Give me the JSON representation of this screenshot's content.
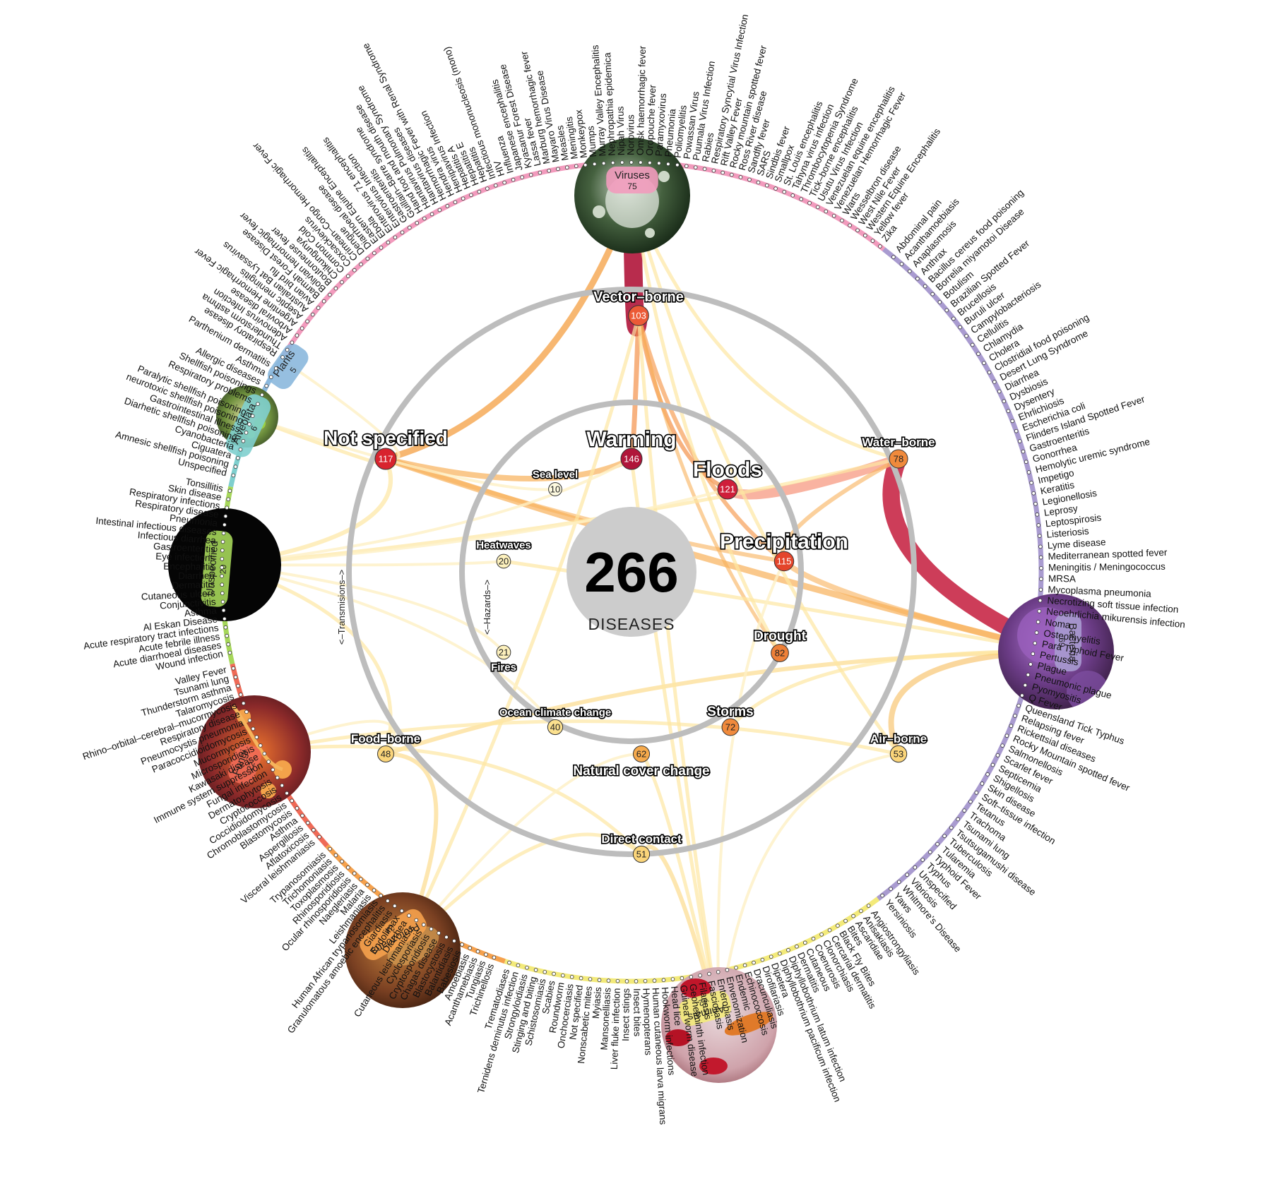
{
  "center": {
    "count": "266",
    "label": "DISEASES"
  },
  "rings": {
    "transmissions": "<–Transmisions–>",
    "hazards": "<–Hazards–>"
  },
  "hazards": [
    {
      "name": "Warming",
      "count": 146,
      "color": "#b0153a",
      "big": true
    },
    {
      "name": "Floods",
      "count": 121,
      "color": "#cf1e3a",
      "big": true
    },
    {
      "name": "Precipitation",
      "count": 115,
      "color": "#e4452b",
      "big": true
    },
    {
      "name": "Drought",
      "count": 82,
      "color": "#ee8038",
      "big": false
    },
    {
      "name": "Storms",
      "count": 72,
      "color": "#f08a3c",
      "big": false
    },
    {
      "name": "Natural cover change",
      "count": 62,
      "color": "#f6aa4c",
      "big": false
    },
    {
      "name": "Ocean climate change",
      "count": 40,
      "color": "#fbe08e",
      "big": false
    },
    {
      "name": "Fires",
      "count": 21,
      "color": "#fdf1bd",
      "big": false
    },
    {
      "name": "Heatwaves",
      "count": 20,
      "color": "#fdf1bd",
      "big": false
    },
    {
      "name": "Sea level",
      "count": 10,
      "color": "#fefae0",
      "big": false
    }
  ],
  "transmissions": [
    {
      "name": "Vector–borne",
      "count": 103,
      "color": "#ec5a36"
    },
    {
      "name": "Water–borne",
      "count": 78,
      "color": "#f08a3c"
    },
    {
      "name": "Air–borne",
      "count": 53,
      "color": "#fbd57a"
    },
    {
      "name": "Direct contact",
      "count": 51,
      "color": "#fbd57a"
    },
    {
      "name": "Food–borne",
      "count": 48,
      "color": "#fbd57a"
    },
    {
      "name": "Not specified",
      "count": 117,
      "color": "#d8232e"
    }
  ],
  "groups": [
    {
      "name": "Viruses",
      "count": 75,
      "color": "#f29bbd"
    },
    {
      "name": "Bacteria",
      "count": 69,
      "color": "#a99bd0"
    },
    {
      "name": "Animals",
      "count": 42,
      "color": "#f3ea7a"
    },
    {
      "name": "Protozoans",
      "count": 24,
      "color": "#f5a14d"
    },
    {
      "name": "Fungi",
      "count": 22,
      "color": "#ef6a57"
    },
    {
      "name": "Unspecified",
      "count": 20,
      "color": "#a6d75a"
    },
    {
      "name": "Alveolata",
      "count": 6,
      "color": "#7fcfce"
    },
    {
      "name": "Plants",
      "count": 5,
      "color": "#8bb8dd"
    }
  ],
  "diseases": {
    "Viruses": [
      "Infectious mononucleosis (mono)",
      "HIV",
      "Influenza",
      "Japanese encephalitis",
      "Kyasanur Forest Disease",
      "Lassa fever",
      "Marburg hemorrhagic fever",
      "Mayaro Virus Disease",
      "Measles",
      "Meningitis",
      "Monkeypox",
      "Mumps",
      "Murray Valley Encephalitis",
      "Nephropathia epidemica",
      "Nipah Virus",
      "Norovirus",
      "Omsk haemorrhagic fever",
      "Oropouche fever",
      "Paramyxovirus",
      "Pneumonia",
      "Poliomyelitis",
      "Powassan Virus",
      "Puumala Virus Infection",
      "Rabies",
      "Respiratory Syncytial Virus Infection",
      "Rift Valley Fever",
      "Rocky mountain spotted fever",
      "Ross River disease",
      "Sandfly fever",
      "SARS",
      "Sindbis fever",
      "Smallpox",
      "St. Louis encephalitis",
      "Tahyna virus infection",
      "Thrombocytopenia Syndrome",
      "Tick–borne encephalitis",
      "Usutu Virus Infection",
      "Venezuelan equine encephalitis",
      "Venezuelan Hemorrhagic Fever",
      "Warts",
      "Wesselbron disease",
      "West Nile Fever",
      "Western Equine Encephalitis",
      "Yellow fever",
      "Zika"
    ],
    "Bacteria": [
      "Abdominal pain",
      "Acanthamoebiasis",
      "Anaplasmosis",
      "Anthrax",
      "Bacillus cereus food poisoning",
      "Borrelia miyamotoi Disease",
      "Botulism",
      "Brazilian Spotted Fever",
      "Brucellosis",
      "Buruli ulcer",
      "Campylobacteriosis",
      "Cellulitis",
      "Chlamydia",
      "Cholera",
      "Clostridial food poisoning",
      "Desert Lung Syndrome",
      "Diarrhea",
      "Dysbiosis",
      "Dysentery",
      "Ehrlichiosis",
      "Escherichia coli",
      "Flinders Island Spotted Fever",
      "Gastroenteritis",
      "Gonorrhea",
      "Hemolytic uremic syndrome",
      "Impetigo",
      "Keratitis",
      "Legionellosis",
      "Leprosy",
      "Leptospirosis",
      "Listeriosis",
      "Lyme disease",
      "Mediterranean spotted fever",
      "Meningitis / Meningococcus",
      "MRSA",
      "Mycoplasma pneumonia",
      "Necrotizing soft tissue infection",
      "Neoehrlichia mikurensis infection",
      "Noma",
      "Osteomyelitis",
      "Para Typhoid Fever",
      "Pertussis",
      "Plague",
      "Pneumonic plague",
      "Pyomyositis",
      "Q Fever",
      "Queensland Tick Typhus",
      "Relapsing fever",
      "Rickettsial diseases",
      "Rocky Mountain spotted fever",
      "Salmonellosis",
      "Scarlet fever",
      "Septicemia",
      "Shigellosis",
      "Skin disease",
      "Soft–tissue infection",
      "Tetanus",
      "Trachoma",
      "Tsunami lung",
      "Tsutsugamushi disease",
      "Tuberculosis",
      "Tularemia",
      "Typhoid Fever",
      "Typhus",
      "Unspecified",
      "Vibriosis",
      "Whitmore's Disease",
      "Yaws",
      "Yersiniosis"
    ],
    "Animals": [
      "Angiostrongyliasis",
      "Anisakiasis",
      "Ascaridiae",
      "Bites",
      "Black Fly Bites",
      "Cercarial dermatitis",
      "Clonorchiasis",
      "Coenurosis",
      "Cutaneous",
      "Dermatitis",
      "Diphyllobothrium latum infection",
      "Diphyllobothrium pacificum infection",
      "Dipetera",
      "Dirofilariasis",
      "Dracunculiasis",
      "Echinococcosis",
      "Endemic",
      "Envenomization",
      "Enterobiasis",
      "Fascioliasis",
      "Filariasis",
      "Geohelminth infection",
      "Guinea worm disease",
      "Head lice",
      "Hookworm infections",
      "Human cutaneous larva migrans",
      "Hymenopterans",
      "Insect bites",
      "Insect stings",
      "Liver fluke infection",
      "Mansonelliasis",
      "Myiasis",
      "Nonscabetic mites",
      "Not specified",
      "Onchocerciasis",
      "Roundworm",
      "Scabies",
      "Schistosomiasis",
      "Stinging and biting",
      "Strongyloidiasis",
      "Ternidens deminutus infection",
      "Trematodiases"
    ],
    "Protozoans": [
      "Trichinellosis",
      "Tungiasis",
      "Acanthamebiasis",
      "Amoebiasis",
      "Babesiosis",
      "Balantidiasis",
      "Blastocystosis",
      "Chagas disease",
      "Cryptosporidiosis",
      "Cyclosporiasis",
      "Cutaneous leishmaniasis",
      "Diarrhea",
      "Endolimax",
      "Giardiasis",
      "Granulomatous amoebic encephalitis",
      "Human African trypanosomiasis",
      "Leishmaniasis",
      "Malaria",
      "Naegleriasis",
      "Ocular rhinosporidiosis",
      "Rhinosporidiosis",
      "Toxoplasmosis",
      "Trichomoniasis",
      "Trypanosomiasis"
    ],
    "Fungi": [
      "Visceral leishmaniasis",
      "Aflatoxicosis",
      "Aspergillosis",
      "Asthma",
      "Blastomycosis",
      "Chromoblastomycosis",
      "Coccidioidomycosis",
      "Cryptococcosis",
      "Dermatophytosis",
      "Fungal infection",
      "Immune system suppression",
      "Kawasaki disease",
      "Microsporidiosis",
      "Mucormycosis",
      "Paracoccidioidomycosis",
      "Pneumocystis pneumonia",
      "Respiratory disease",
      "Rhino–orbital–cerebral–mucormycosis",
      "Talaromycosis",
      "Thunderstorm asthma",
      "Tsunami lung",
      "Valley Fever"
    ],
    "Unspecified": [
      "Wound infection",
      "Acute diarrhoeal diseases",
      "Acute febrile illness",
      "Acute respiratory tract infections",
      "Al Eskan Disease",
      "Asthma",
      "Conjunctivitis",
      "Cutaneous ulcers",
      "Dermatitis",
      "Diarrhea",
      "Encephalitis",
      "Eye infections",
      "Gastroenteritis",
      "Infectious diarrhea",
      "Intestinal infectious diseases",
      "Pneumonia",
      "Respiratory disease",
      "Respiratory infections",
      "Skin disease",
      "Tonsillitis"
    ],
    "Alveolata": [
      "Unspecified",
      "Amnesic shellfish poisoning",
      "Ciguatera",
      "Cyanobacteria",
      "Diarhetic shellfish poisoning",
      "Gastrointestinal illness",
      "neurotoxic shellfish poisoning",
      "Paralytic shellfish poisoning"
    ],
    "Plants": [
      "Respiratory problems",
      "Shellfish poisonings",
      "Allergic diseases",
      "Asthma",
      "Parthenium dermatitis"
    ],
    "Viruses2": [
      "Respiratory disease",
      "Thunderstorm asthma",
      "Adenovirus Infection",
      "Arboviral disease",
      "Argentine Hemorrhagic Fever",
      "Aseptic meningitis",
      "Australian Bat Lyssavirus",
      "Avian bird flu",
      "Barmah Forest Disease",
      "Bolivian hemorrhagic fever",
      "Boutonneuse fever",
      "Chikungunya",
      "Common Cold",
      "Coxsackievirus",
      "Crimean–Congo Hemorrhagic Fever",
      "Dengue",
      "Diarrhoeal disease",
      "Eastern Equine Encephalitis",
      "Ebola",
      "Enterovirus 71 encephalitis",
      "Enterovirus Infection",
      "Gastroenteritis",
      "Guillain–Barre syndrome",
      "Hand foot and mouth disease",
      "Hantavirus Pulmonary Syndrome",
      "Hantavirus diseases",
      "Hemorrhagic Fever with Renal Syndrome",
      "Hendra virus",
      "Henipavirus Infection",
      "Hepatitis A",
      "Hepatitis E",
      "Hepatitis"
    ]
  }
}
